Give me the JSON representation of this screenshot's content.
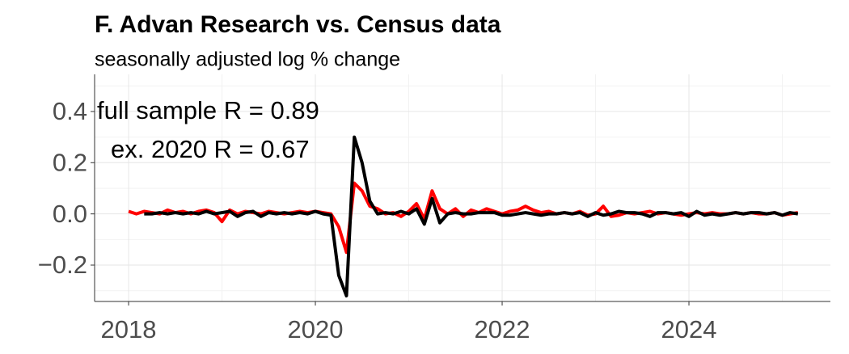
{
  "chart_data": {
    "type": "line",
    "title": "F. Advan Research vs. Census data",
    "subtitle": "seasonally adjusted log % change",
    "annotations": [
      "full sample R = 0.89",
      "ex. 2020 R = 0.67"
    ],
    "x": [
      2018.0,
      2018.083,
      2018.167,
      2018.25,
      2018.333,
      2018.417,
      2018.5,
      2018.583,
      2018.667,
      2018.75,
      2018.833,
      2018.917,
      2019.0,
      2019.083,
      2019.167,
      2019.25,
      2019.333,
      2019.417,
      2019.5,
      2019.583,
      2019.667,
      2019.75,
      2019.833,
      2019.917,
      2020.0,
      2020.083,
      2020.167,
      2020.25,
      2020.333,
      2020.417,
      2020.5,
      2020.583,
      2020.667,
      2020.75,
      2020.833,
      2020.917,
      2021.0,
      2021.083,
      2021.167,
      2021.25,
      2021.333,
      2021.417,
      2021.5,
      2021.583,
      2021.667,
      2021.75,
      2021.833,
      2021.917,
      2022.0,
      2022.083,
      2022.167,
      2022.25,
      2022.333,
      2022.417,
      2022.5,
      2022.583,
      2022.667,
      2022.75,
      2022.833,
      2022.917,
      2023.0,
      2023.083,
      2023.167,
      2023.25,
      2023.333,
      2023.417,
      2023.5,
      2023.583,
      2023.667,
      2023.75,
      2023.833,
      2023.917,
      2024.0,
      2024.083,
      2024.167,
      2024.25,
      2024.333,
      2024.417,
      2024.5,
      2024.583,
      2024.667,
      2024.75,
      2024.833,
      2024.917,
      2025.0,
      2025.083,
      2025.167
    ],
    "series": [
      {
        "color": "#ff0000",
        "values": [
          0.01,
          0.0,
          0.01,
          0.005,
          0.0,
          0.015,
          0.005,
          0.01,
          0.0,
          0.01,
          0.015,
          0.005,
          -0.03,
          0.015,
          0.0,
          0.01,
          0.005,
          0.0,
          0.01,
          0.005,
          0.0,
          0.005,
          0.01,
          0.005,
          0.01,
          0.005,
          0.0,
          -0.05,
          -0.15,
          0.12,
          0.09,
          0.03,
          0.02,
          0.0,
          0.005,
          -0.01,
          0.01,
          0.04,
          -0.02,
          0.09,
          0.02,
          0.0,
          0.02,
          -0.01,
          0.015,
          0.005,
          0.02,
          0.01,
          0.0,
          0.01,
          0.015,
          0.03,
          0.015,
          0.005,
          0.01,
          0.0,
          0.005,
          0.0,
          0.01,
          -0.005,
          0.0,
          0.03,
          -0.01,
          -0.005,
          0.005,
          0.0,
          0.005,
          0.01,
          0.0,
          0.005,
          0.0,
          -0.005,
          0.0,
          0.005,
          0.0,
          0.005,
          0.0,
          0.0,
          0.005,
          0.0,
          0.005,
          0.0,
          0.0,
          0.005,
          -0.005,
          0.0,
          0.005
        ]
      },
      {
        "color": "#000000",
        "values": [
          null,
          null,
          0.0,
          0.0,
          0.005,
          0.0,
          0.005,
          0.0,
          0.005,
          0.0,
          0.01,
          0.0,
          0.005,
          0.01,
          -0.01,
          0.005,
          0.01,
          -0.01,
          0.005,
          0.0,
          0.005,
          0.0,
          0.005,
          0.0,
          0.01,
          0.0,
          -0.005,
          -0.24,
          -0.32,
          0.3,
          0.2,
          0.05,
          0.0,
          0.005,
          0.0,
          0.01,
          0.0,
          0.02,
          -0.04,
          0.06,
          -0.035,
          0.0,
          0.005,
          0.0,
          0.0,
          0.005,
          0.005,
          0.005,
          -0.005,
          -0.005,
          0.0,
          0.005,
          0.0,
          -0.005,
          0.0,
          0.0,
          0.005,
          0.0,
          0.005,
          -0.01,
          0.005,
          -0.005,
          0.0,
          0.01,
          0.005,
          0.005,
          0.0,
          -0.01,
          0.005,
          0.005,
          0.0,
          0.005,
          -0.01,
          0.01,
          -0.005,
          0.0,
          -0.005,
          0.0,
          0.005,
          0.0,
          0.005,
          0.005,
          0.0,
          0.005,
          -0.005,
          0.005,
          0.0
        ]
      }
    ],
    "xlim": [
      2017.636,
      2025.515
    ],
    "xticks": [
      2018,
      2020,
      2022,
      2024
    ],
    "ylim": [
      -0.342,
      0.545
    ],
    "yticks": [
      {
        "value": 0.4,
        "label": "0.4"
      },
      {
        "value": 0.2,
        "label": "0.2"
      },
      {
        "value": 0,
        "label": "0.0"
      },
      {
        "value": -0.2,
        "label": "−0.2"
      }
    ],
    "x_minor_grid": [
      2019,
      2021,
      2023,
      2025
    ],
    "y_minor_grid": [
      -0.3,
      -0.1,
      0.1,
      0.3,
      0.5
    ],
    "grid": true
  }
}
